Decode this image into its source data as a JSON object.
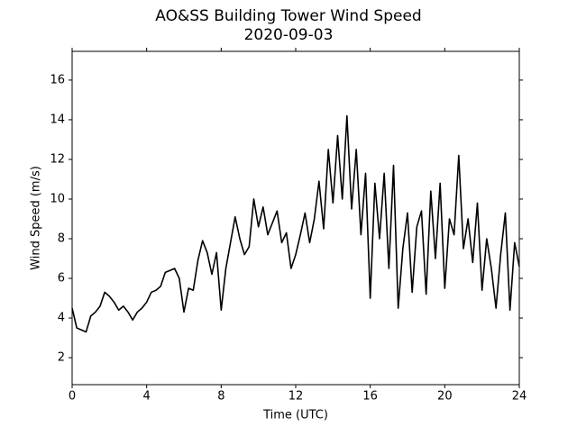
{
  "chart_data": {
    "type": "line",
    "title": "AO&SS Building Tower Wind Speed",
    "subtitle": "2020-09-03",
    "xlabel": "Time (UTC)",
    "ylabel": "Wind Speed (m/s)",
    "x": [
      0,
      0.25,
      0.5,
      0.75,
      1,
      1.25,
      1.5,
      1.75,
      2,
      2.25,
      2.5,
      2.75,
      3,
      3.25,
      3.5,
      3.75,
      4,
      4.25,
      4.5,
      4.75,
      5,
      5.25,
      5.5,
      5.75,
      6,
      6.25,
      6.5,
      6.75,
      7,
      7.25,
      7.5,
      7.75,
      8,
      8.25,
      8.5,
      8.75,
      9,
      9.25,
      9.5,
      9.75,
      10,
      10.25,
      10.5,
      10.75,
      11,
      11.25,
      11.5,
      11.75,
      12,
      12.25,
      12.5,
      12.75,
      13,
      13.25,
      13.5,
      13.75,
      14,
      14.25,
      14.5,
      14.75,
      15,
      15.25,
      15.5,
      15.75,
      16,
      16.25,
      16.5,
      16.75,
      17,
      17.25,
      17.5,
      17.75,
      18,
      18.25,
      18.5,
      18.75,
      19,
      19.25,
      19.5,
      19.75,
      20,
      20.25,
      20.5,
      20.75,
      21,
      21.25,
      21.5,
      21.75,
      22,
      22.25,
      22.5,
      22.75,
      23,
      23.25,
      23.5,
      23.75,
      24
    ],
    "series": [
      {
        "name": "Wind Speed",
        "color": "#000000",
        "values": [
          4.5,
          3.5,
          3.4,
          3.3,
          4.1,
          4.3,
          4.6,
          5.3,
          5.1,
          4.8,
          4.4,
          4.6,
          4.3,
          3.9,
          4.3,
          4.5,
          4.8,
          5.3,
          5.4,
          5.6,
          6.3,
          6.4,
          6.5,
          6.0,
          4.3,
          5.5,
          5.4,
          6.9,
          7.9,
          7.3,
          6.2,
          7.3,
          4.4,
          6.5,
          7.8,
          9.1,
          8.0,
          7.2,
          7.6,
          10.0,
          8.6,
          9.6,
          8.2,
          8.8,
          9.4,
          7.8,
          8.3,
          6.5,
          7.2,
          8.2,
          9.3,
          7.8,
          9.0,
          10.9,
          8.5,
          12.5,
          9.8,
          13.2,
          10.0,
          14.2,
          9.5,
          12.5,
          8.2,
          11.3,
          5.0,
          10.8,
          8.0,
          11.3,
          6.5,
          11.7,
          4.5,
          7.5,
          9.3,
          5.3,
          8.6,
          9.4,
          5.2,
          10.4,
          7.0,
          10.8,
          5.5,
          9.0,
          8.2,
          12.2,
          7.5,
          9.0,
          6.8,
          9.8,
          5.4,
          8.0,
          6.5,
          4.5,
          7.2,
          9.3,
          4.4,
          7.8,
          6.6
        ]
      }
    ],
    "xlim": [
      0,
      24
    ],
    "xticks": [
      0,
      4,
      8,
      12,
      16,
      20,
      24
    ],
    "ylim": [
      0.64,
      17.45
    ],
    "yticks": [
      2,
      4,
      6,
      8,
      10,
      12,
      14,
      16
    ]
  }
}
